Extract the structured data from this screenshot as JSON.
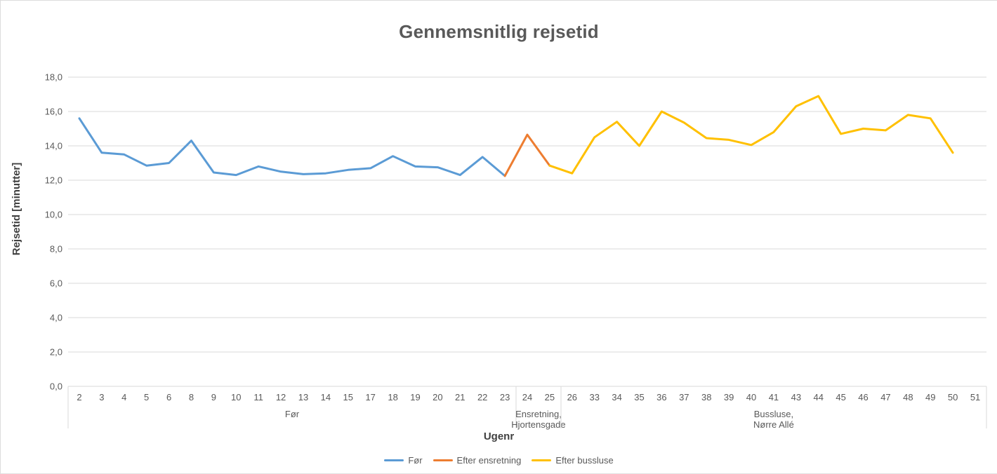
{
  "chart_data": {
    "type": "line",
    "title": "Gennemsnitlig rejsetid",
    "xlabel": "Ugenr",
    "ylabel": "Rejsetid [minutter]",
    "ylim": [
      0,
      18
    ],
    "y_tick_step": 2,
    "y_tick_labels": [
      "0,0",
      "2,0",
      "4,0",
      "6,0",
      "8,0",
      "10,0",
      "12,0",
      "14,0",
      "16,0",
      "18,0"
    ],
    "grid": "horizontal",
    "legend_position": "bottom",
    "categories": [
      "2",
      "3",
      "4",
      "5",
      "6",
      "8",
      "9",
      "10",
      "11",
      "12",
      "13",
      "14",
      "15",
      "17",
      "18",
      "19",
      "20",
      "21",
      "22",
      "23",
      "24",
      "25",
      "26",
      "33",
      "34",
      "35",
      "36",
      "37",
      "38",
      "39",
      "40",
      "41",
      "43",
      "44",
      "45",
      "46",
      "47",
      "48",
      "49",
      "50",
      "51"
    ],
    "x_groups": [
      {
        "lines": [
          "Før"
        ],
        "from": "2",
        "to": "23"
      },
      {
        "lines": [
          "Ensretning,",
          "Hjortensgade"
        ],
        "from": "24",
        "to": "25"
      },
      {
        "lines": [
          "Bussluse,",
          "Nørre Allé"
        ],
        "from": "26",
        "to": "51"
      }
    ],
    "series": [
      {
        "name": "Før",
        "color": "#5B9BD5",
        "points": [
          [
            "2",
            15.6
          ],
          [
            "3",
            13.6
          ],
          [
            "4",
            13.5
          ],
          [
            "5",
            12.85
          ],
          [
            "6",
            13.0
          ],
          [
            "8",
            14.3
          ],
          [
            "9",
            12.45
          ],
          [
            "10",
            12.3
          ],
          [
            "11",
            12.8
          ],
          [
            "12",
            12.5
          ],
          [
            "13",
            12.35
          ],
          [
            "14",
            12.4
          ],
          [
            "15",
            12.6
          ],
          [
            "17",
            12.7
          ],
          [
            "18",
            13.4
          ],
          [
            "19",
            12.8
          ],
          [
            "20",
            12.75
          ],
          [
            "21",
            12.3
          ],
          [
            "22",
            13.35
          ],
          [
            "23",
            12.25
          ]
        ]
      },
      {
        "name": "Efter ensretning",
        "color": "#ED7D31",
        "points": [
          [
            "23",
            12.25
          ],
          [
            "24",
            14.65
          ],
          [
            "25",
            12.85
          ]
        ]
      },
      {
        "name": "Efter bussluse",
        "color": "#FFC000",
        "points": [
          [
            "25",
            12.85
          ],
          [
            "26",
            12.4
          ],
          [
            "33",
            14.5
          ],
          [
            "34",
            15.4
          ],
          [
            "35",
            14.0
          ],
          [
            "36",
            16.0
          ],
          [
            "37",
            15.35
          ],
          [
            "38",
            14.45
          ],
          [
            "39",
            14.35
          ],
          [
            "40",
            14.05
          ],
          [
            "41",
            14.8
          ],
          [
            "43",
            16.3
          ],
          [
            "44",
            16.9
          ],
          [
            "45",
            14.7
          ],
          [
            "46",
            15.0
          ],
          [
            "47",
            14.9
          ],
          [
            "48",
            15.8
          ],
          [
            "49",
            15.6
          ],
          [
            "50",
            13.6
          ]
        ]
      }
    ]
  },
  "colors": {
    "grid": "#D9D9D9",
    "axis": "#D9D9D9",
    "tick_text": "#595959",
    "title_text": "#595959",
    "axis_title_text": "#404040"
  }
}
